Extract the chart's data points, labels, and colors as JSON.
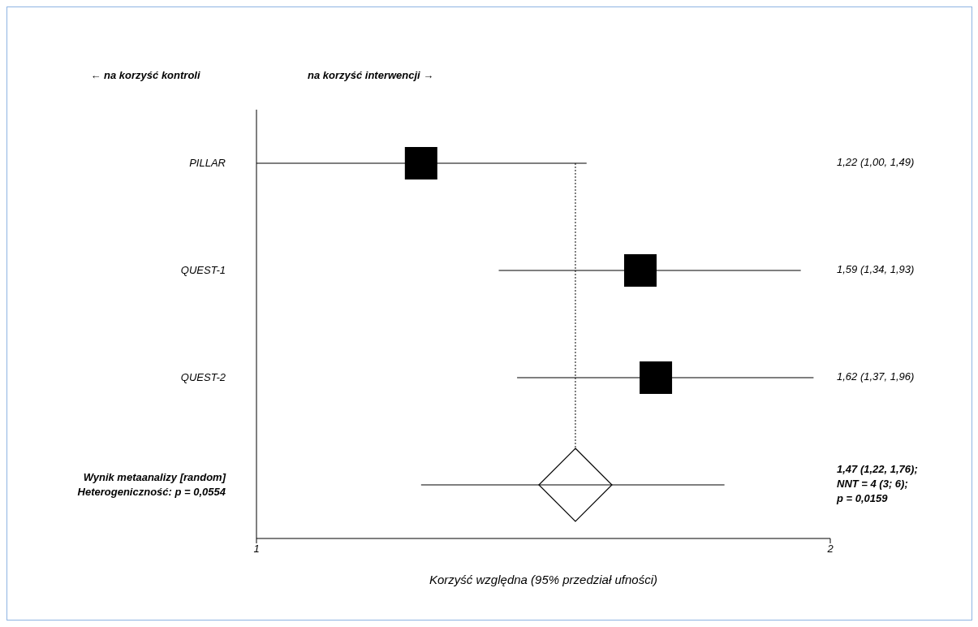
{
  "chart_data": {
    "type": "scatter",
    "orientation": "horizontal",
    "xlabel": "Korzyść względna (95% przedział ufności)",
    "categories": [
      "PILLAR",
      "QUEST-1",
      "QUEST-2",
      "Wynik metaanalizy [random]\nHeterogeniczność: p = 0,0554"
    ],
    "series": [
      {
        "marker": "square",
        "color": "#000000",
        "values": [
          1.22,
          1.59,
          1.62,
          null
        ],
        "errors": [
          [
            1.0,
            1.49
          ],
          [
            1.34,
            1.93
          ],
          [
            1.37,
            1.96
          ],
          null
        ]
      },
      {
        "marker": "diamond",
        "color": "#000000",
        "values": [
          null,
          null,
          null,
          1.47
        ],
        "errors": [
          null,
          null,
          null,
          [
            1.22,
            1.76
          ]
        ]
      }
    ],
    "log": "x",
    "xlim": [
      1,
      2
    ],
    "xticks": [
      1,
      2
    ],
    "ref_lines": [
      {
        "axis": "x",
        "value": 1.47,
        "line_style": "dotted",
        "color": "#000000"
      }
    ],
    "annotations": [
      "← na korzyść kontroli",
      "na korzyść interwencji →",
      "1,22 (1,00, 1,49)",
      "1,59 (1,34, 1,93)",
      "1,62 (1,37, 1,96)",
      "1,47 (1,22, 1,76);\nNNT = 4 (3; 6);\np = 0,0159"
    ],
    "grid": false,
    "legend": false
  }
}
